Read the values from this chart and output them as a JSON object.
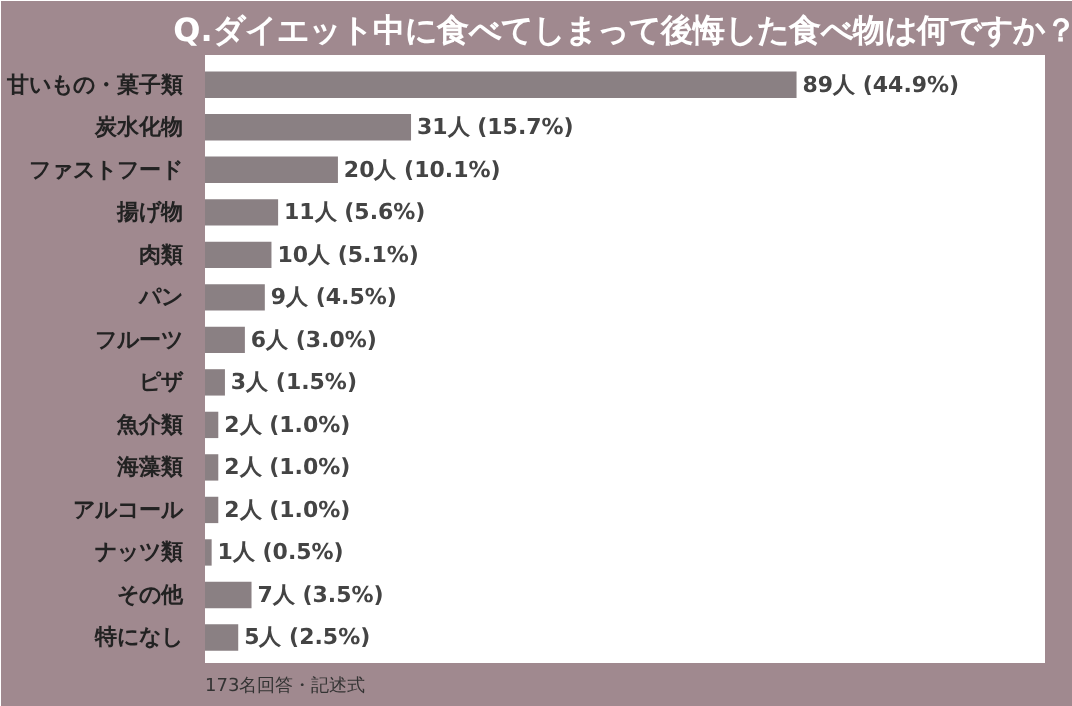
{
  "chart_data": {
    "type": "bar",
    "orientation": "horizontal",
    "title": "Q.ダイエット中に食べてしまって後悔した食べ物は何ですか？",
    "categories": [
      "甘いもの・菓子類",
      "炭水化物",
      "ファストフード",
      "揚げ物",
      "肉類",
      "パン",
      "フルーツ",
      "ピザ",
      "魚介類",
      "海藻類",
      "アルコール",
      "ナッツ類",
      "その他",
      "特になし"
    ],
    "values": [
      89,
      31,
      20,
      11,
      10,
      9,
      6,
      3,
      2,
      2,
      2,
      1,
      7,
      5
    ],
    "value_labels": [
      "89人 (44.9%)",
      "31人 (15.7%)",
      "20人 (10.1%)",
      "11人 (5.6%)",
      "10人 (5.1%)",
      "9人 (4.5%)",
      "6人 (3.0%)",
      "3人 (1.5%)",
      "2人 (1.0%)",
      "2人 (1.0%)",
      "2人 (1.0%)",
      "1人 (0.5%)",
      "7人 (3.5%)",
      "5人 (2.5%)"
    ],
    "color": "#8a8083",
    "annotations": [
      "173名回答・記述式"
    ]
  }
}
